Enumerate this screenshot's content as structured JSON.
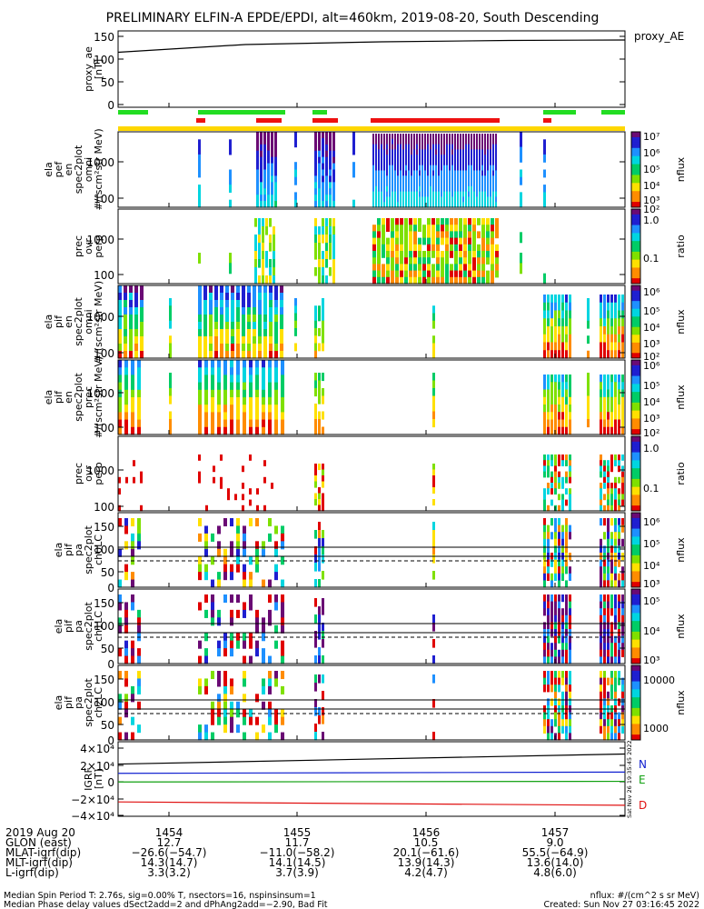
{
  "title": "PRELIMINARY ELFIN-A EPDE/EPDI, alt=460km, 2019-08-20, South Descending",
  "colors": {
    "spec": [
      "#6a0a74",
      "#1f1fd0",
      "#1e90ff",
      "#00d5e0",
      "#00cc66",
      "#7fe000",
      "#ffe000",
      "#ff8c00",
      "#e00000"
    ],
    "bar_green": "#22dd22",
    "bar_red": "#ee1111",
    "bar_yellow": "#ffd700",
    "line_blue": "#1020d0",
    "line_green": "#10a010",
    "line_red": "#e01010"
  },
  "chart_data": [
    {
      "id": "proxy_ae",
      "type": "line",
      "ylabel": "proxy_ae\n[nT]",
      "legend": "proxy_AE",
      "ylim": [
        0,
        150
      ],
      "yticks": [
        "150",
        "100",
        "50",
        "0"
      ],
      "x": [
        "14:53:15",
        "14:54:30",
        "14:55:30",
        "14:56:30",
        "14:57:45"
      ],
      "values": [
        115,
        132,
        138,
        141,
        142
      ]
    },
    {
      "id": "ela_pef_en_omni",
      "type": "heatmap",
      "ylabel": "ela\npef\nen\nspec2plot\nomni\n#/(scm²str MeV)",
      "ytick_labels": [
        "1000",
        "100"
      ],
      "colorbar": {
        "label": "nflux",
        "tick_labels": [
          "10⁷",
          "10⁶",
          "10⁵",
          "10⁴",
          "10³",
          "10²"
        ]
      }
    },
    {
      "id": "prec_ovr_perp_e",
      "type": "heatmap",
      "ylabel": "prec\novr\nperp",
      "ytick_labels": [
        "1000",
        "100"
      ],
      "colorbar": {
        "label": "ratio",
        "tick_labels": [
          "1.0",
          "0.1"
        ]
      }
    },
    {
      "id": "ela_pif_en_omni",
      "type": "heatmap",
      "ylabel": "ela\npif\nen\nspec2plot\nomni\n#/(scm²str MeV)",
      "ytick_labels": [
        "1000",
        "100"
      ],
      "colorbar": {
        "label": "nflux",
        "tick_labels": [
          "10⁶",
          "10⁵",
          "10⁴",
          "10³",
          "10²"
        ]
      }
    },
    {
      "id": "ela_pif_en_prec",
      "type": "heatmap",
      "ylabel": "ela\npif\nen\nspec2plot\nprec\n#/(scm²str MeV)",
      "ytick_labels": [
        "1000",
        "100"
      ],
      "colorbar": {
        "label": "nflux",
        "tick_labels": [
          "10⁶",
          "10⁵",
          "10⁴",
          "10³",
          "10²"
        ]
      }
    },
    {
      "id": "prec_ovr_perp_i",
      "type": "heatmap",
      "ylabel": "prec\novr\nperp",
      "ytick_labels": [
        "1000",
        "100"
      ],
      "colorbar": {
        "label": "ratio",
        "tick_labels": [
          "1.0",
          "0.1"
        ]
      }
    },
    {
      "id": "ela_pif_pa_ch0LC",
      "type": "heatmap",
      "ylabel": "ela\npif\npa\nspec2plot\nch0LC",
      "ytick_labels": [
        "150",
        "100",
        "50",
        "0"
      ],
      "colorbar": {
        "label": "nflux",
        "tick_labels": [
          "10⁶",
          "10⁵",
          "10⁴",
          "10³"
        ]
      }
    },
    {
      "id": "ela_pif_pa_ch1LC",
      "type": "heatmap",
      "ylabel": "ela\npif\npa\nspec2plot\nch1LC",
      "ytick_labels": [
        "150",
        "100",
        "50",
        "0"
      ],
      "colorbar": {
        "label": "nflux",
        "tick_labels": [
          "10⁵",
          "10⁴",
          "10³"
        ]
      }
    },
    {
      "id": "ela_pif_pa_ch2LC",
      "type": "heatmap",
      "ylabel": "ela\npif\npa\nspec2plot\nch2LC",
      "ytick_labels": [
        "150",
        "100",
        "50",
        "0"
      ],
      "colorbar": {
        "label": "nflux",
        "tick_labels": [
          "10000",
          "1000"
        ]
      }
    },
    {
      "id": "igrf",
      "type": "line",
      "ylabel": "IGRF\n[nT]",
      "ytick_labels": [
        "4×10⁴",
        "2×10⁴",
        "0",
        "−2×10⁴",
        "−4×10⁴"
      ],
      "ylim": [
        -40000,
        40000
      ],
      "series": [
        {
          "name": "N",
          "values": [
            10000,
            11500
          ]
        },
        {
          "name": "E",
          "values": [
            -300,
            500
          ]
        },
        {
          "name": "D",
          "values": [
            -24000,
            -28000
          ]
        },
        {
          "name": "",
          "values": [
            21000,
            33000
          ]
        }
      ]
    }
  ],
  "xaxis": {
    "rows": [
      {
        "label": "2019 Aug 20",
        "values": [
          "1454",
          "1455",
          "1456",
          "1457"
        ]
      },
      {
        "label": "GLON (east)",
        "values": [
          "12.7",
          "11.7",
          "10.5",
          "9.0"
        ]
      },
      {
        "label": "MLAT-igrf(dip)",
        "values": [
          "−26.6(−54.7)",
          "−11.0(−58.2)",
          "20.1(−61.6)",
          "55.5(−64.9)"
        ]
      },
      {
        "label": "MLT-igrf(dip)",
        "values": [
          "14.3(14.7)",
          "14.1(14.5)",
          "13.9(14.3)",
          "13.6(14.0)"
        ]
      },
      {
        "label": "L-igrf(dip)",
        "values": [
          "3.3(3.2)",
          "3.7(3.9)",
          "4.2(4.7)",
          "4.8(6.0)"
        ]
      }
    ]
  },
  "footer": {
    "line1": "Median Spin Period T: 2.76s, sig=0.00% T, nsectors=16, nspinsinsum=1",
    "line2": "Median Phase delay values dSect2add=2 and dPhAng2add=−2.90, Bad Fit",
    "right1": "nflux: #/(cm^2 s sr MeV)",
    "right2": "Created: Sun Nov 27 03:16:45 2022",
    "vertical": "Sat Nov 26 19:35:45 2022"
  }
}
